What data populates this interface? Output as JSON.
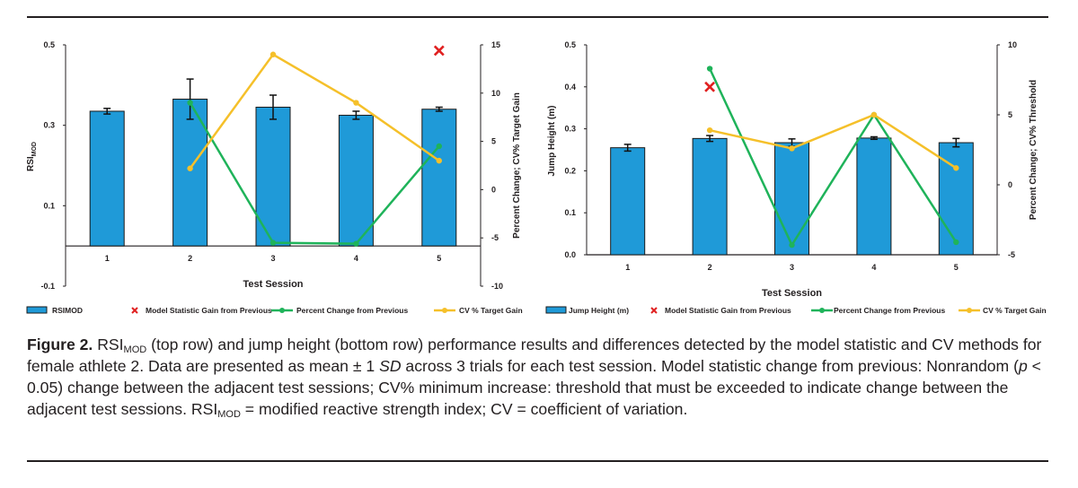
{
  "figure": {
    "caption_label": "Figure 2.",
    "caption_parts": [
      {
        "t": "text",
        "v": " RSI"
      },
      {
        "t": "sub",
        "v": "MOD"
      },
      {
        "t": "text",
        "v": " (top row) and jump height (bottom row) performance results and differences detected by the model statistic and CV methods for female athlete 2. Data are presented as mean "
      },
      {
        "t": "text",
        "v": "± 1 "
      },
      {
        "t": "italic",
        "v": "SD"
      },
      {
        "t": "text",
        "v": " across 3 trials for each test session. Model statistic change from previous: Nonrandom ("
      },
      {
        "t": "italic",
        "v": "p"
      },
      {
        "t": "text",
        "v": " < 0.05) change between the adjacent test sessions; CV% minimum increase: threshold that must be exceeded to indicate change between the adjacent test sessions. RSI"
      },
      {
        "t": "sub",
        "v": "MOD"
      },
      {
        "t": "text",
        "v": " = modified reactive strength index; CV = coefficient of variation."
      }
    ]
  },
  "colors": {
    "bar": "#1f9ad8",
    "bar_edge": "#1a1a1a",
    "green": "#1fb35a",
    "yellow": "#f5c02a",
    "red": "#e02020"
  },
  "chart_data": [
    {
      "type": "bar",
      "title": "",
      "categories": [
        "1",
        "2",
        "3",
        "4",
        "5"
      ],
      "xlabel": "Test Session",
      "ylabel": "RSIMOD",
      "ylabel_main": "RSI",
      "ylabel_sub": "MOD",
      "y2label": "Percent Change; CV% Target Gain",
      "ylim": [
        -0.1,
        0.5
      ],
      "yticks": [
        -0.1,
        0.1,
        0.3,
        0.5
      ],
      "ytick_labels": [
        "-0.1",
        "0.1",
        "0.3",
        "0.5"
      ],
      "y2lim": [
        -10,
        15
      ],
      "y2ticks": [
        -10,
        -5,
        0,
        5,
        10,
        15
      ],
      "y2tick_labels": [
        "-10",
        "-5",
        "0",
        "5",
        "10",
        "15"
      ],
      "series": [
        {
          "name": "RSIMOD",
          "kind": "bar",
          "axis": "left",
          "values": [
            0.335,
            0.365,
            0.345,
            0.325,
            0.34
          ],
          "errors": [
            0.007,
            0.05,
            0.03,
            0.01,
            0.005
          ]
        },
        {
          "name": "Model Statistic Gain from Previous",
          "kind": "marker",
          "axis": "right",
          "points": [
            [
              5,
              14.4
            ]
          ]
        },
        {
          "name": "Percent Change from Previous",
          "kind": "line",
          "color": "green",
          "axis": "right",
          "points": [
            [
              2,
              9.0
            ],
            [
              3,
              -5.5
            ],
            [
              4,
              -5.6
            ],
            [
              5,
              4.5
            ]
          ]
        },
        {
          "name": "CV % Target Gain",
          "kind": "line",
          "color": "yellow",
          "axis": "right",
          "points": [
            [
              2,
              2.2
            ],
            [
              3,
              14.0
            ],
            [
              4,
              9.0
            ],
            [
              5,
              3.0
            ]
          ]
        }
      ]
    },
    {
      "type": "bar",
      "title": "",
      "categories": [
        "1",
        "2",
        "3",
        "4",
        "5"
      ],
      "xlabel": "Test Session",
      "ylabel": "Jump Height (m)",
      "y2label": "Percent Change; CV% Threshold",
      "ylim": [
        0.0,
        0.5
      ],
      "yticks": [
        0.0,
        0.1,
        0.2,
        0.3,
        0.4,
        0.5
      ],
      "ytick_labels": [
        "0.0",
        "0.1",
        "0.2",
        "0.3",
        "0.4",
        "0.5"
      ],
      "y2lim": [
        -5,
        10
      ],
      "y2ticks": [
        -5,
        0,
        5,
        10
      ],
      "y2tick_labels": [
        "-5",
        "0",
        "5",
        "10"
      ],
      "series": [
        {
          "name": "Jump Height (m)",
          "kind": "bar",
          "axis": "left",
          "values": [
            0.255,
            0.277,
            0.267,
            0.278,
            0.267
          ],
          "errors": [
            0.008,
            0.007,
            0.009,
            0.003,
            0.01
          ]
        },
        {
          "name": "Model Statistic Gain from Previous",
          "kind": "marker",
          "axis": "right",
          "points": [
            [
              2,
              7.0
            ]
          ]
        },
        {
          "name": "Percent Change from Previous",
          "kind": "line",
          "color": "green",
          "axis": "right",
          "points": [
            [
              2,
              8.3
            ],
            [
              3,
              -4.3
            ],
            [
              4,
              5.0
            ],
            [
              5,
              -4.1
            ]
          ]
        },
        {
          "name": "CV % Target Gain",
          "kind": "line",
          "color": "yellow",
          "axis": "right",
          "points": [
            [
              2,
              3.9
            ],
            [
              3,
              2.6
            ],
            [
              4,
              5.0
            ],
            [
              5,
              1.2
            ]
          ]
        }
      ]
    }
  ]
}
